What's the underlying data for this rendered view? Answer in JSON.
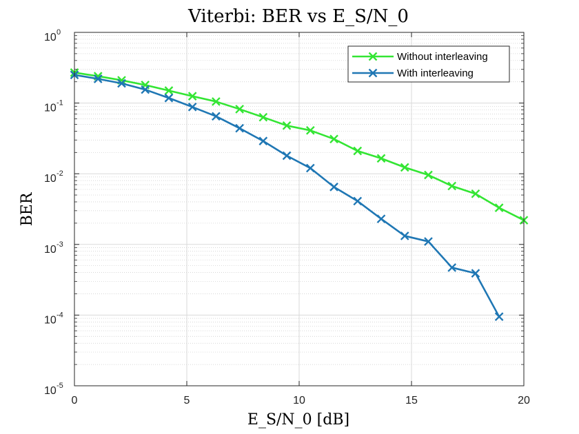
{
  "chart_data": {
    "type": "line",
    "title": "Viterbi: BER vs E_S/N_0",
    "xlabel": "E_S/N_0 [dB]",
    "ylabel": "BER",
    "xlim": [
      0,
      20
    ],
    "ylim": [
      1e-05,
      1
    ],
    "yscale": "log",
    "grid": true,
    "legend_position": "top-right",
    "x_ticks": [
      "0",
      "5",
      "10",
      "15",
      "20"
    ],
    "y_ticks": [
      {
        "base": "10",
        "exp": "0"
      },
      {
        "base": "10",
        "exp": "-1"
      },
      {
        "base": "10",
        "exp": "-2"
      },
      {
        "base": "10",
        "exp": "-3"
      },
      {
        "base": "10",
        "exp": "-4"
      },
      {
        "base": "10",
        "exp": "-5"
      }
    ],
    "series": [
      {
        "name": "Without interleaving",
        "color": "#33e533",
        "marker": "x",
        "x": [
          0,
          1.05,
          2.1,
          3.15,
          4.2,
          5.25,
          6.3,
          7.35,
          8.4,
          9.45,
          10.5,
          11.55,
          12.6,
          13.65,
          14.7,
          15.75,
          16.8,
          17.85,
          18.9,
          20
        ],
        "y": [
          0.27,
          0.24,
          0.21,
          0.18,
          0.15,
          0.125,
          0.105,
          0.082,
          0.063,
          0.048,
          0.041,
          0.031,
          0.021,
          0.0165,
          0.0123,
          0.0096,
          0.0067,
          0.0052,
          0.0033,
          0.0022
        ]
      },
      {
        "name": "With interleaving",
        "color": "#1f77b4",
        "marker": "x",
        "x": [
          0,
          1.05,
          2.1,
          3.15,
          4.2,
          5.25,
          6.3,
          7.35,
          8.4,
          9.45,
          10.5,
          11.55,
          12.6,
          13.65,
          14.7,
          15.75,
          16.8,
          17.85,
          18.9
        ],
        "y": [
          0.25,
          0.22,
          0.19,
          0.155,
          0.118,
          0.088,
          0.065,
          0.044,
          0.029,
          0.018,
          0.012,
          0.0065,
          0.0041,
          0.0023,
          0.00132,
          0.0011,
          0.00047,
          0.00039,
          9.5e-05
        ]
      }
    ]
  }
}
